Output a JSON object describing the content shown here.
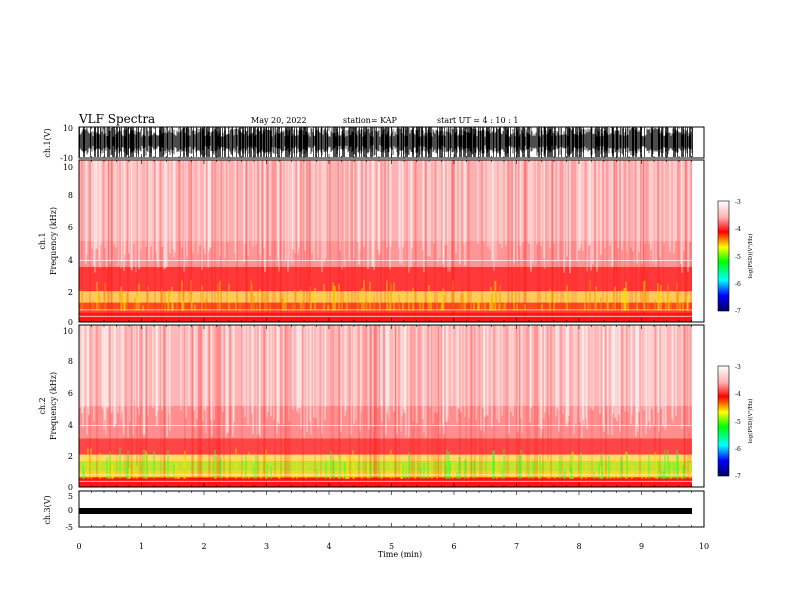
{
  "header": {
    "title": "VLF Spectra",
    "date": "May 20, 2022",
    "station": "station= KAP",
    "start": "start  UT =   4 : 10 : 1"
  },
  "chart_data": [
    {
      "type": "line",
      "name": "ch1-waveform",
      "ylabel": "ch.1(V)",
      "ylim": [
        -10,
        10
      ],
      "yticks": [
        "10",
        "-10"
      ],
      "xlim": [
        0,
        10
      ]
    },
    {
      "type": "heatmap",
      "name": "ch1-spectrogram",
      "ylabel": "ch.1\nFrequency (kHz)",
      "ylabel_lines": [
        "ch.1",
        "Frequency (kHz)"
      ],
      "ylim": [
        0,
        10
      ],
      "yticks": [
        "0",
        "2",
        "4",
        "6",
        "8",
        "10"
      ],
      "xlim": [
        0,
        10
      ],
      "colorbar": {
        "label": "log(PSD)(V²/Hz)",
        "range": [
          -7,
          -3
        ],
        "ticks": [
          "-3",
          "-4",
          "-5",
          "-6",
          "-7"
        ]
      }
    },
    {
      "type": "heatmap",
      "name": "ch2-spectrogram",
      "ylabel": "ch.2\nFrequency (kHz)",
      "ylabel_lines": [
        "ch.2",
        "Frequency (kHz)"
      ],
      "ylim": [
        0,
        10
      ],
      "yticks": [
        "0",
        "2",
        "4",
        "6",
        "8",
        "10"
      ],
      "xlim": [
        0,
        10
      ],
      "colorbar": {
        "label": "log(PSD)(V²/Hz)",
        "range": [
          -7,
          -3
        ],
        "ticks": [
          "-3",
          "-4",
          "-5",
          "-6",
          "-7"
        ]
      }
    },
    {
      "type": "line",
      "name": "ch3-waveform",
      "ylabel": "ch.3(V)",
      "ylim": [
        -5,
        5
      ],
      "yticks": [
        "5",
        "0",
        "-5"
      ],
      "xlim": [
        0,
        10
      ],
      "xlabel": "Time (min)",
      "xticks": [
        "0",
        "1",
        "2",
        "3",
        "4",
        "5",
        "6",
        "7",
        "8",
        "9",
        "10"
      ]
    }
  ],
  "colors": {
    "low": "#ffffff",
    "mid": "#ff0000",
    "high": "#00ff00",
    "trace": "#000000"
  }
}
